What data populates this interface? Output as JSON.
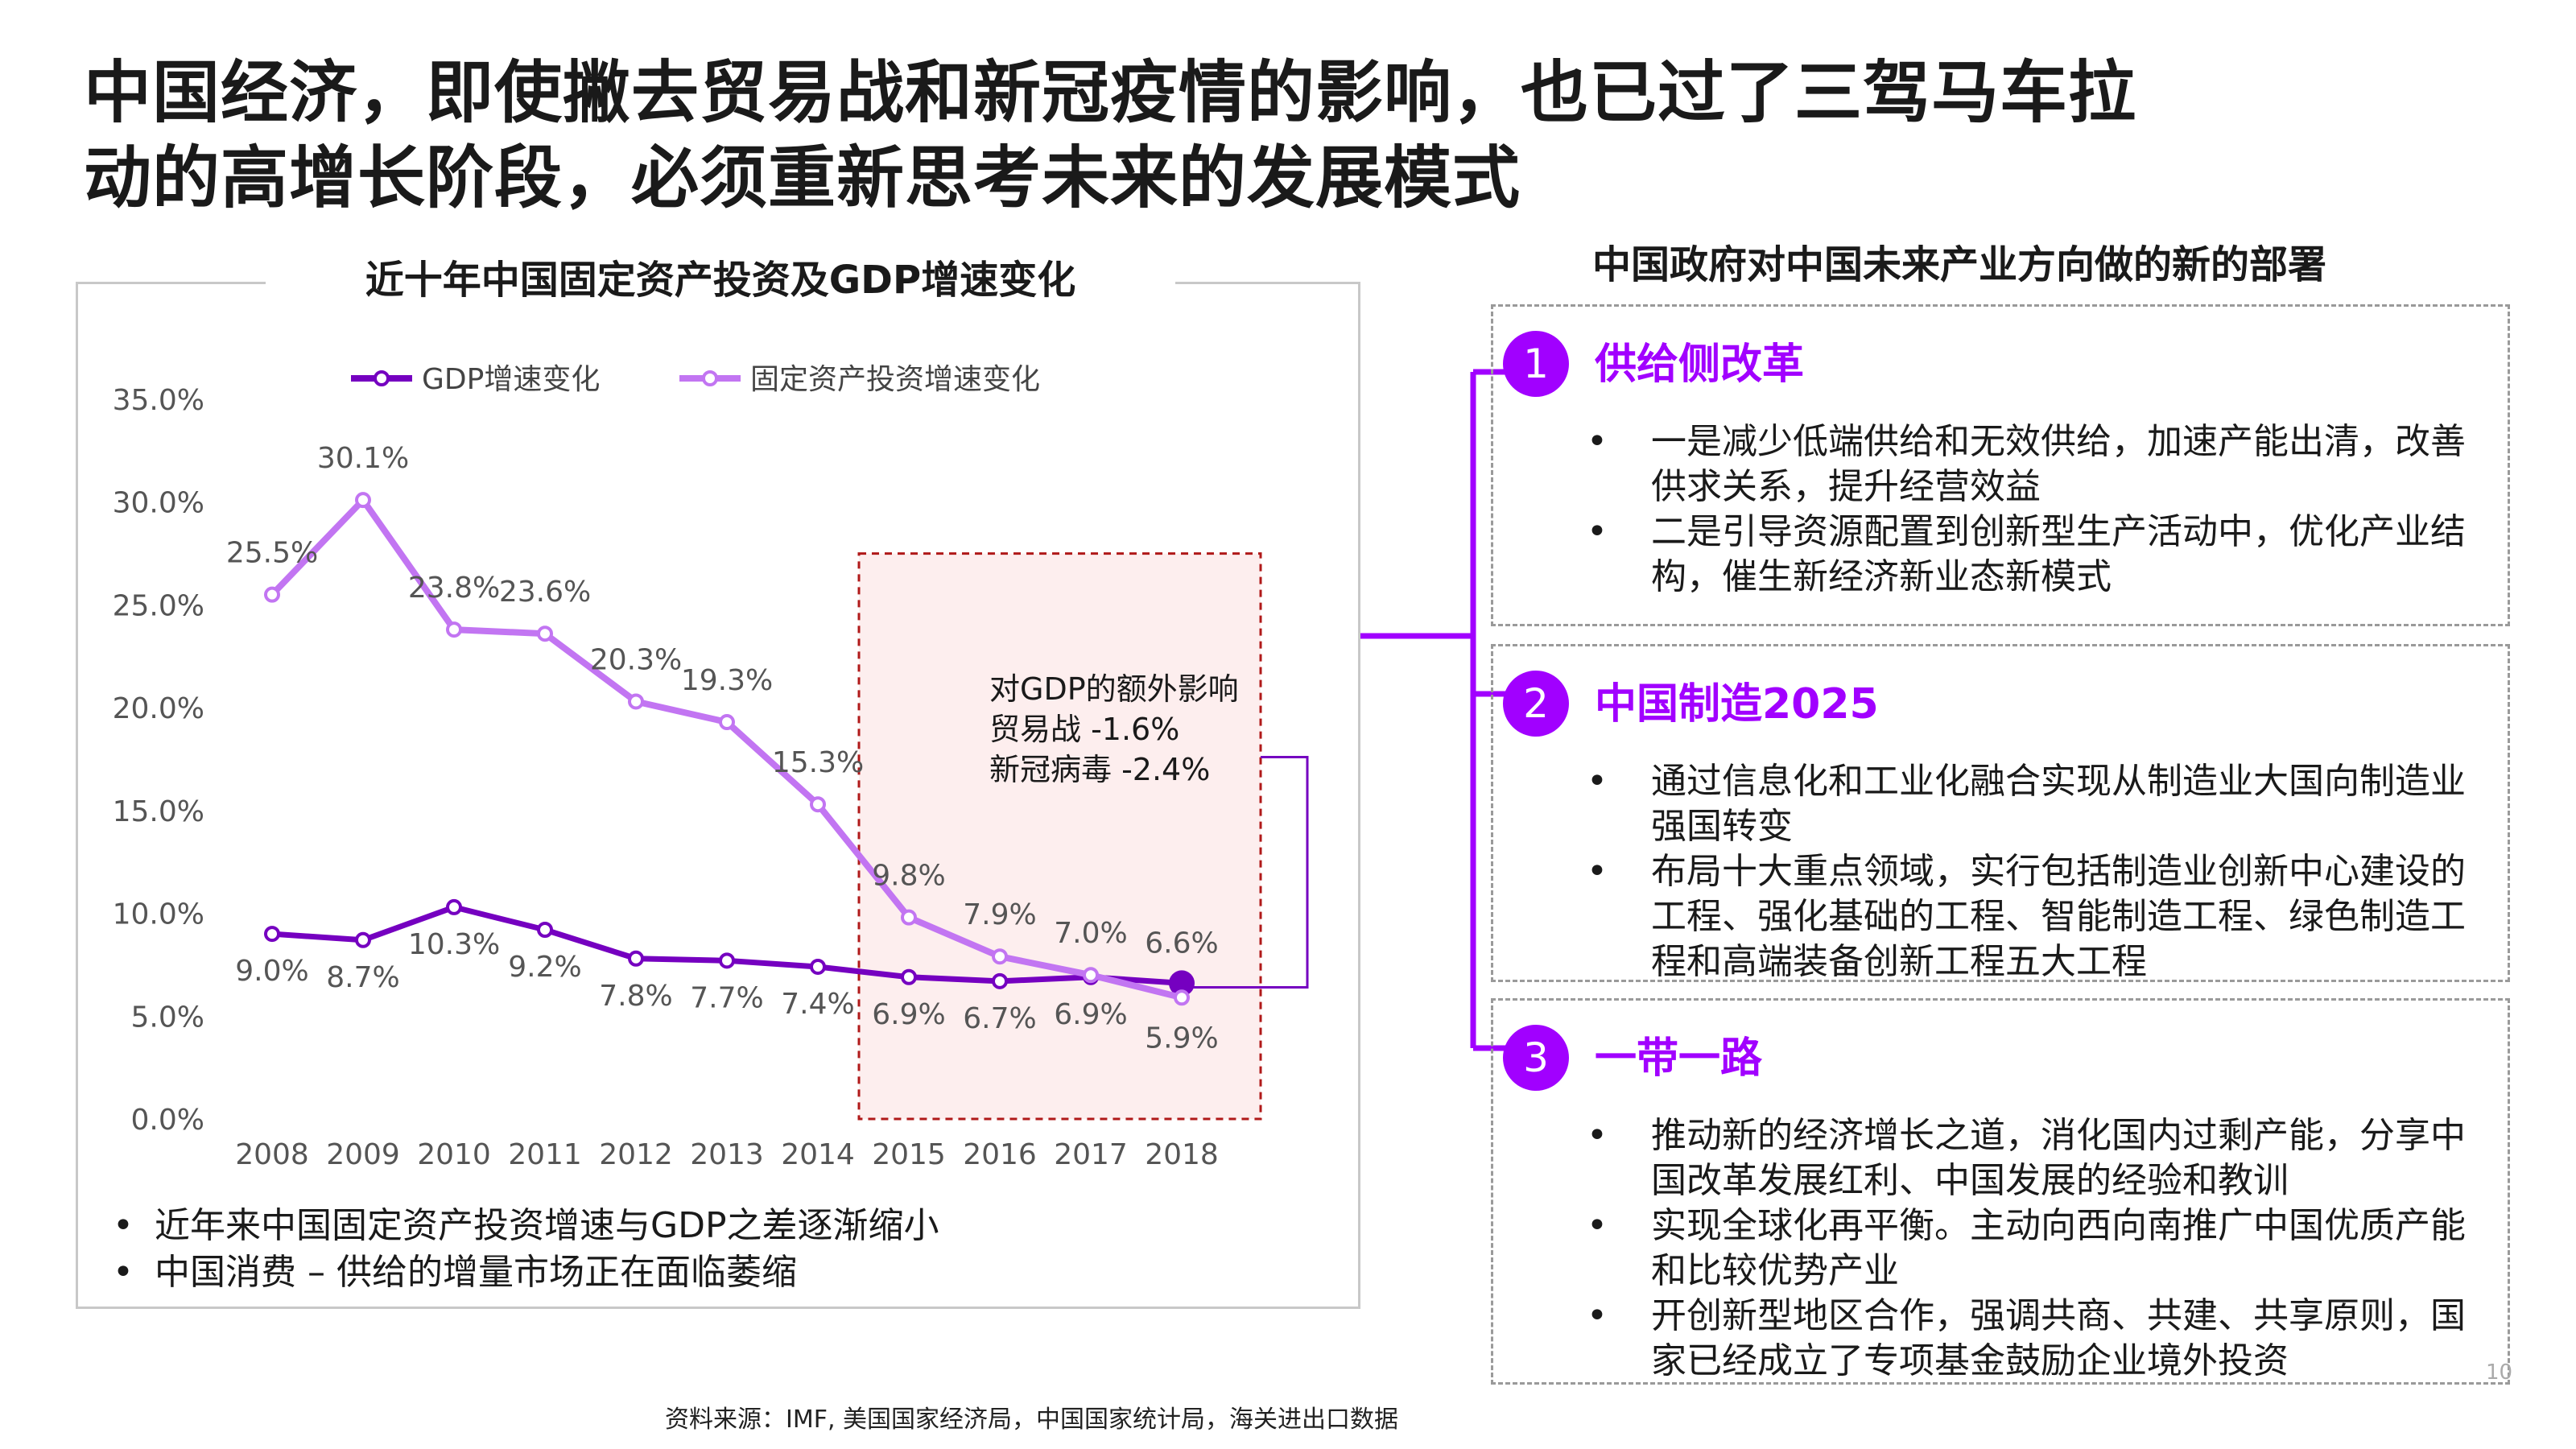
{
  "title": {
    "line1": "中国经济，即使撇去贸易战和新冠疫情的影响，也已过了三驾马车拉",
    "line2": "动的高增长阶段，必须重新思考未来的发展模式"
  },
  "chart_data": {
    "type": "line",
    "title": "近十年中国固定资产投资及GDP增速变化",
    "categories": [
      "2008",
      "2009",
      "2010",
      "2011",
      "2012",
      "2013",
      "2014",
      "2015",
      "2016",
      "2017",
      "2018"
    ],
    "series": [
      {
        "name": "GDP增速变化",
        "values": [
          9.0,
          8.7,
          10.3,
          9.2,
          7.8,
          7.7,
          7.4,
          6.9,
          6.7,
          6.9,
          6.6
        ],
        "labels": [
          "9.0%",
          "8.7%",
          "10.3%",
          "9.2%",
          "7.8%",
          "7.7%",
          "7.4%",
          "6.9%",
          "6.7%",
          "6.9%",
          "6.6%"
        ],
        "color": "#7500c0"
      },
      {
        "name": "固定资产投资增速变化",
        "values": [
          25.5,
          30.1,
          23.8,
          23.6,
          20.3,
          19.3,
          15.3,
          9.8,
          7.9,
          7.0,
          5.9
        ],
        "labels": [
          "25.5%",
          "30.1%",
          "23.8%",
          "23.6%",
          "20.3%",
          "19.3%",
          "15.3%",
          "9.8%",
          "7.9%",
          "7.0%",
          "5.9%"
        ],
        "color": "#c275f2"
      }
    ],
    "ylim": [
      0,
      35
    ],
    "yticks": [
      0,
      5,
      10,
      15,
      20,
      25,
      30,
      35
    ],
    "ytick_labels": [
      "0.0%",
      "5.0%",
      "10.0%",
      "15.0%",
      "20.0%",
      "25.0%",
      "30.0%",
      "35.0%"
    ],
    "legend_position": "top",
    "grid": false,
    "highlight": {
      "from": "2015",
      "to": "2018",
      "fill": "#fdeeee",
      "border": "#b01919",
      "annotation": [
        "对GDP的额外影响",
        "贸易战 -1.6%",
        "新冠病毒 -2.4%"
      ]
    }
  },
  "notes": [
    "近年来中国固定资产投资增速与GDP之差逐渐缩小",
    "中国消费 – 供给的增量市场正在面临萎缩"
  ],
  "bullet_symbol": "•",
  "right": {
    "title": "中国政府对中国未来产业方向做的新的部署",
    "accent": "#a100ff",
    "cards": [
      {
        "num": "1",
        "head": "供给侧改革",
        "items": [
          "一是减少低端供给和无效供给，加速产能出清，改善供求关系，提升经营效益",
          "二是引导资源配置到创新型生产活动中，优化产业结构，催生新经济新业态新模式"
        ]
      },
      {
        "num": "2",
        "head": "中国制造2025",
        "items": [
          "通过信息化和工业化融合实现从制造业大国向制造业强国转变",
          "布局十大重点领域，实行包括制造业创新中心建设的工程、强化基础的工程、智能制造工程、绿色制造工程和高端装备创新工程五大工程"
        ]
      },
      {
        "num": "3",
        "head": "一带一路",
        "items": [
          "推动新的经济增长之道，消化国内过剩产能，分享中国改革发展红利、中国发展的经验和教训",
          "实现全球化再平衡。主动向西向南推广中国优质产能和比较优势产业",
          "开创新型地区合作，强调共商、共建、共享原则，国家已经成立了专项基金鼓励企业境外投资"
        ]
      }
    ]
  },
  "source": "资料来源：IMF, 美国国家经济局，中国国家统计局，海关进出口数据",
  "page_number": "10"
}
